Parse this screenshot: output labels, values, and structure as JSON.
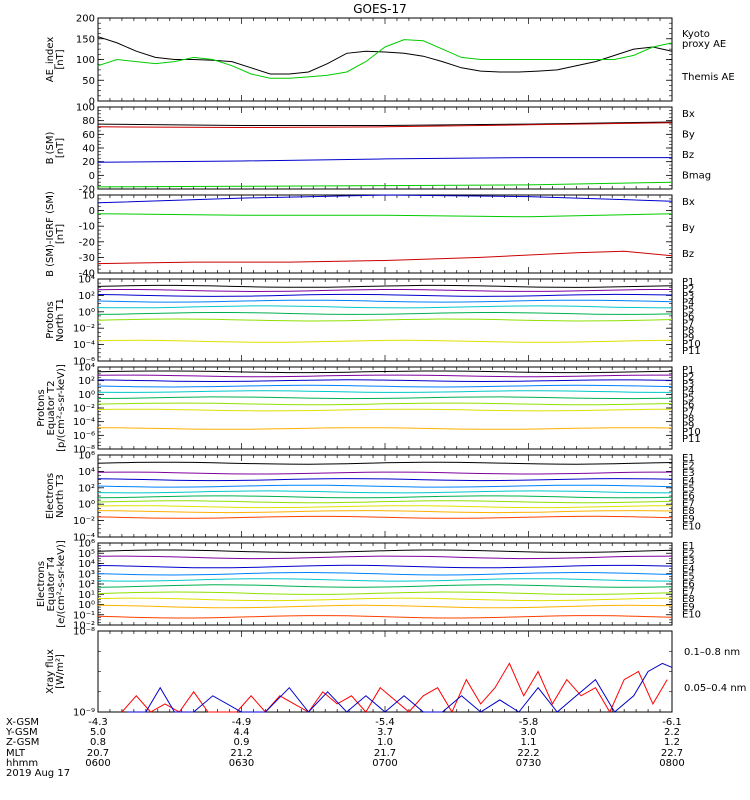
{
  "title": "GOES-17",
  "chart_data": {
    "type": "line",
    "time_axis": {
      "ticks": [
        "0600",
        "0630",
        "0700",
        "0730",
        "0800"
      ],
      "rows": [
        {
          "name": "X-GSM",
          "values": [
            "-4.3",
            "-4.9",
            "-5.4",
            "-5.8",
            "-6.1"
          ]
        },
        {
          "name": "Y-GSM",
          "values": [
            "5.0",
            "4.4",
            "3.7",
            "3.0",
            "2.2"
          ]
        },
        {
          "name": "Z-GSM",
          "values": [
            "0.8",
            "0.9",
            "1.0",
            "1.1",
            "1.2"
          ]
        },
        {
          "name": "MLT",
          "values": [
            "20.7",
            "21.2",
            "21.7",
            "22.2",
            "22.7"
          ]
        },
        {
          "name": "hhmm",
          "values": [
            "0600",
            "0630",
            "0700",
            "0730",
            "0800"
          ]
        }
      ],
      "date": "2019 Aug 17"
    },
    "panels": [
      {
        "id": "ae",
        "ylabel": [
          "AE_index",
          "[nT]"
        ],
        "yscale": "linear",
        "ylim": [
          0,
          200
        ],
        "yticks": [
          "0",
          "50",
          "100",
          "150",
          "200"
        ],
        "legend": [
          {
            "text": "Kyoto",
            "color": "#00cc00"
          },
          {
            "text": "proxy AE",
            "color": "#00cc00"
          },
          {
            "text": "Themis AE",
            "color": "#000000"
          }
        ],
        "series": [
          {
            "color": "#000000",
            "x": [
              0,
              4,
              8,
              12,
              16,
              20,
              24,
              28,
              32,
              36,
              40,
              44,
              48,
              52,
              56,
              60,
              64,
              68,
              72,
              76,
              80,
              84,
              88,
              92,
              96,
              100,
              104,
              108,
              112,
              116,
              120
            ],
            "y": [
              155,
              140,
              120,
              105,
              100,
              100,
              98,
              95,
              80,
              65,
              65,
              70,
              90,
              115,
              120,
              118,
              115,
              108,
              95,
              80,
              72,
              70,
              70,
              72,
              75,
              85,
              95,
              110,
              125,
              130,
              120
            ]
          },
          {
            "color": "#00cc00",
            "x": [
              0,
              4,
              8,
              12,
              16,
              20,
              24,
              28,
              32,
              36,
              40,
              44,
              48,
              52,
              56,
              60,
              64,
              68,
              72,
              76,
              80,
              84,
              88,
              92,
              96,
              100,
              104,
              108,
              112,
              116,
              120
            ],
            "y": [
              85,
              100,
              95,
              90,
              95,
              105,
              100,
              85,
              65,
              55,
              55,
              58,
              62,
              70,
              95,
              130,
              148,
              145,
              125,
              105,
              100,
              100,
              100,
              100,
              100,
              100,
              100,
              100,
              110,
              130,
              140
            ]
          }
        ]
      },
      {
        "id": "b_sm",
        "ylabel": [
          "B (SM)",
          "[nT]"
        ],
        "yscale": "linear",
        "ylim": [
          -20,
          100
        ],
        "yticks": [
          "-20",
          "0",
          "20",
          "40",
          "60",
          "80",
          "100"
        ],
        "legend": [
          {
            "text": "Bx",
            "color": "#0000cc"
          },
          {
            "text": "By",
            "color": "#00cc00"
          },
          {
            "text": "Bz",
            "color": "#cc0000"
          },
          {
            "text": "Bmag",
            "color": "#000000"
          }
        ],
        "series": [
          {
            "color": "#000000",
            "x": [
              0,
              30,
              60,
              90,
              120
            ],
            "y": [
              75,
              73,
              73,
              75,
              78
            ]
          },
          {
            "color": "#cc0000",
            "x": [
              0,
              30,
              60,
              90,
              120
            ],
            "y": [
              71,
              70,
              71,
              74,
              77
            ]
          },
          {
            "color": "#0000cc",
            "x": [
              0,
              30,
              60,
              90,
              120
            ],
            "y": [
              19,
              21,
              24,
              26,
              26
            ]
          },
          {
            "color": "#00cc00",
            "x": [
              0,
              30,
              60,
              90,
              120
            ],
            "y": [
              -17,
              -16,
              -15,
              -14,
              -10
            ]
          }
        ]
      },
      {
        "id": "b_sm_igrf",
        "ylabel": [
          "B (SM)-IGRF (SM)",
          "[nT]"
        ],
        "yscale": "linear",
        "ylim": [
          -40,
          10
        ],
        "yticks": [
          "-40",
          "-30",
          "-20",
          "-10",
          "0",
          "10"
        ],
        "legend": [
          {
            "text": "Bx",
            "color": "#0000cc"
          },
          {
            "text": "By",
            "color": "#00cc00"
          },
          {
            "text": "Bz",
            "color": "#cc0000"
          }
        ],
        "series": [
          {
            "color": "#0000cc",
            "x": [
              0,
              30,
              60,
              90,
              120
            ],
            "y": [
              5,
              8,
              10,
              9,
              6
            ]
          },
          {
            "color": "#00cc00",
            "x": [
              0,
              30,
              60,
              90,
              120
            ],
            "y": [
              -2,
              -3,
              -3,
              -4,
              -2
            ]
          },
          {
            "color": "#cc0000",
            "x": [
              0,
              20,
              40,
              60,
              80,
              100,
              110,
              120
            ],
            "y": [
              -34,
              -33,
              -33,
              -32,
              -30,
              -27,
              -26,
              -29
            ]
          }
        ]
      },
      {
        "id": "protons_t1",
        "ylabel": [
          "Protons",
          "North T1"
        ],
        "yscale": "log",
        "ylim": [
          -6,
          4
        ],
        "yticks": [
          "10⁻⁶",
          "10⁻⁴",
          "10⁻²",
          "10⁰",
          "10²",
          "10⁴"
        ],
        "legend": [
          "P1",
          "P2",
          "P3",
          "P4",
          "P5",
          "P6",
          "P7",
          "P8",
          "P9",
          "P10",
          "P11"
        ],
        "legend_colors": [
          "#000000",
          "#8000a0",
          "#0000cc",
          "#0080ff",
          "#00c8c8",
          "#00b050",
          "#90e000",
          "#e0e000",
          "#ffb000",
          "#ff4000",
          "#cc0000"
        ],
        "levels": [
          3.1,
          2.6,
          2.0,
          1.3,
          0.6,
          -0.2,
          -1.0,
          -3.6
        ]
      },
      {
        "id": "protons_t2",
        "ylabel": [
          "Protons",
          "Equator T2",
          "[p/(cm²-s-sr-keV)]"
        ],
        "yscale": "log",
        "ylim": [
          -8,
          4
        ],
        "yticks": [
          "10⁻⁸",
          "10⁻⁶",
          "10⁻⁴",
          "10⁻²",
          "10⁰",
          "10²",
          "10⁴"
        ],
        "legend": [
          "P1",
          "P2",
          "P3",
          "P4",
          "P5",
          "P6",
          "P7",
          "P8",
          "P9",
          "P10",
          "P11"
        ],
        "legend_colors": [
          "#000000",
          "#8000a0",
          "#0000cc",
          "#0080ff",
          "#00c8c8",
          "#00b050",
          "#90e000",
          "#e0e000",
          "#ffb000",
          "#ff4000",
          "#cc0000"
        ],
        "levels": [
          3.3,
          2.7,
          2.0,
          1.2,
          0.4,
          -0.5,
          -1.4,
          -2.3,
          -5.0
        ]
      },
      {
        "id": "electrons_t3",
        "ylabel": [
          "Electrons",
          "North T3"
        ],
        "yscale": "log",
        "ylim": [
          -4,
          6
        ],
        "yticks": [
          "10⁻⁴",
          "10⁻²",
          "10⁰",
          "10²",
          "10⁴",
          "10⁶"
        ],
        "legend": [
          "E1",
          "E2",
          "E3",
          "E4",
          "E5",
          "E6",
          "E7",
          "E8",
          "E9",
          "E10"
        ],
        "legend_colors": [
          "#000000",
          "#8000a0",
          "#0000cc",
          "#0080ff",
          "#00c8c8",
          "#00b050",
          "#90e000",
          "#e0e000",
          "#ffb000",
          "#ff4000"
        ],
        "levels": [
          5.0,
          3.8,
          3.0,
          2.2,
          1.5,
          0.9,
          0.3,
          -0.3,
          -0.9,
          -1.6
        ]
      },
      {
        "id": "electrons_t4",
        "ylabel": [
          "Electrons",
          "Equator T4",
          "[e/(cm²-s-sr-keV)]"
        ],
        "yscale": "log",
        "ylim": [
          -2,
          6
        ],
        "yticks": [
          "10⁻²",
          "10⁻¹",
          "10⁰",
          "10¹",
          "10²",
          "10³",
          "10⁴",
          "10⁵",
          "10⁶"
        ],
        "legend": [
          "E1",
          "E2",
          "E3",
          "E4",
          "E5",
          "E6",
          "E7",
          "E8",
          "E9",
          "E10"
        ],
        "legend_colors": [
          "#000000",
          "#8000a0",
          "#0000cc",
          "#0080ff",
          "#00c8c8",
          "#00b050",
          "#90e000",
          "#e0e000",
          "#ffb000",
          "#ff4000"
        ],
        "levels": [
          5.2,
          4.6,
          3.7,
          3.0,
          2.4,
          1.8,
          1.1,
          0.5,
          -0.2,
          -1.2
        ]
      },
      {
        "id": "xray",
        "ylabel": [
          "Xray flux",
          "[W/m²]"
        ],
        "yscale": "log",
        "ylim": [
          -9,
          -8
        ],
        "yticks": [
          "10⁻⁹",
          "10⁻⁸"
        ],
        "legend": [
          {
            "text": "0.1–0.8 nm",
            "color": "#ff0000"
          },
          {
            "text": "0.05–0.4 nm",
            "color": "#0000cc"
          }
        ],
        "series": [
          {
            "color": "#ff0000",
            "x": [
              5,
              8,
              11,
              14,
              17,
              20,
              23,
              26,
              29,
              32,
              35,
              38,
              41,
              44,
              47,
              50,
              53,
              56,
              59,
              62,
              65,
              68,
              71,
              74,
              77,
              80,
              83,
              86,
              89,
              92,
              95,
              98,
              101,
              104,
              107,
              110,
              113,
              116,
              119
            ],
            "y": [
              -9,
              -8.8,
              -9,
              -8.9,
              -9,
              -8.75,
              -9,
              -9,
              -9,
              -8.8,
              -9,
              -8.8,
              -8.9,
              -9,
              -8.75,
              -8.9,
              -8.8,
              -9,
              -8.7,
              -8.85,
              -9,
              -8.8,
              -8.7,
              -9,
              -8.6,
              -8.9,
              -8.7,
              -8.4,
              -8.8,
              -8.5,
              -8.9,
              -8.6,
              -8.8,
              -8.7,
              -9,
              -8.6,
              -8.5,
              -8.9,
              -8.6
            ]
          },
          {
            "color": "#0000cc",
            "x": [
              6,
              10,
              13,
              16,
              20,
              24,
              30,
              35,
              40,
              44,
              48,
              52,
              56,
              60,
              64,
              68,
              72,
              76,
              80,
              84,
              88,
              92,
              96,
              100,
              104,
              108,
              112,
              115,
              118,
              120
            ],
            "y": [
              -9,
              -9,
              -8.7,
              -9,
              -9,
              -8.8,
              -9,
              -9,
              -8.7,
              -9,
              -8.75,
              -9,
              -8.8,
              -9,
              -8.8,
              -9,
              -9,
              -8.8,
              -9,
              -8.85,
              -9,
              -8.7,
              -9,
              -8.8,
              -8.6,
              -9,
              -8.8,
              -8.5,
              -8.4,
              -8.45
            ]
          }
        ]
      }
    ]
  }
}
